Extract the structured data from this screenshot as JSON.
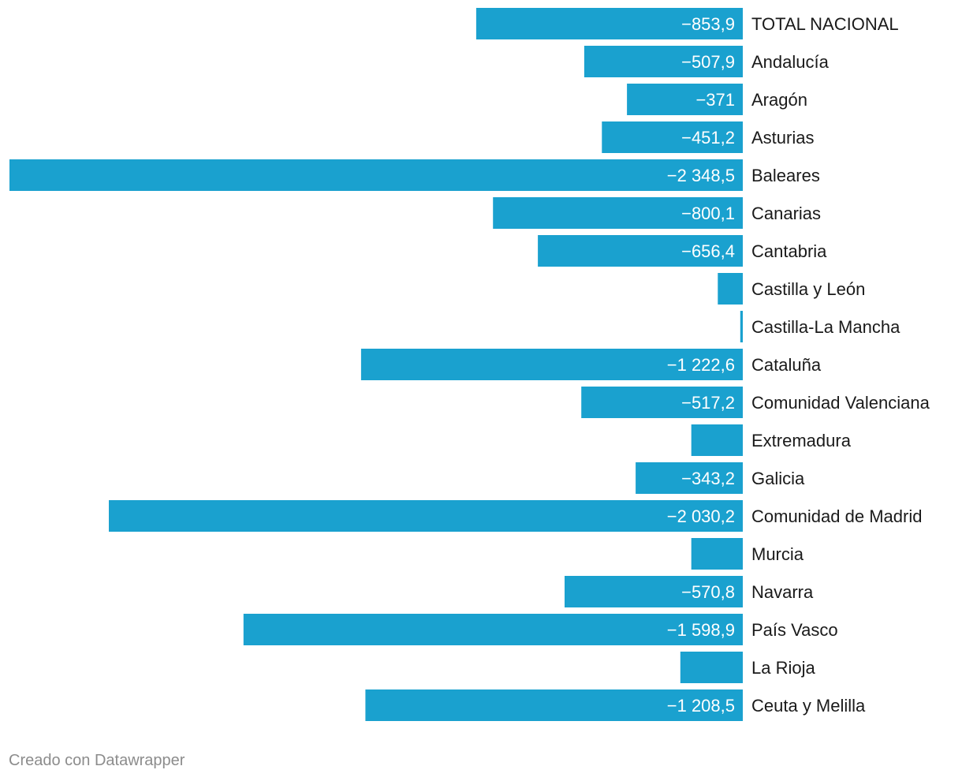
{
  "chart_data": {
    "type": "bar",
    "orientation": "horizontal",
    "title": "",
    "xlabel": "",
    "ylabel": "",
    "grid": false,
    "legend": "none",
    "xlim": [
      -2348.5,
      0
    ],
    "color": "#1aa1cf",
    "categories": [
      "TOTAL NACIONAL",
      "Andalucía",
      "Aragón",
      "Asturias",
      "Baleares",
      "Canarias",
      "Cantabria",
      "Castilla y León",
      "Castilla-La Mancha",
      "Cataluña",
      "Comunidad Valenciana",
      "Extremadura",
      "Galicia",
      "Comunidad de Madrid",
      "Murcia",
      "Navarra",
      "País Vasco",
      "La Rioja",
      "Ceuta y Melilla"
    ],
    "values": [
      -853.9,
      -507.9,
      -371,
      -451.2,
      -2348.5,
      -800.1,
      -656.4,
      -80,
      -8,
      -1222.6,
      -517.2,
      -165,
      -343.2,
      -2030.2,
      -165,
      -570.8,
      -1598.9,
      -200,
      -1208.5
    ],
    "value_labels": [
      "−853,9",
      "−507,9",
      "−371",
      "−451,2",
      "−2 348,5",
      "−800,1",
      "−656,4",
      "",
      "",
      "−1 222,6",
      "−517,2",
      "",
      "−343,2",
      "−2 030,2",
      "",
      "−570,8",
      "−1 598,9",
      "",
      "−1 208,5"
    ]
  },
  "footer": {
    "credit": "Creado con Datawrapper"
  }
}
